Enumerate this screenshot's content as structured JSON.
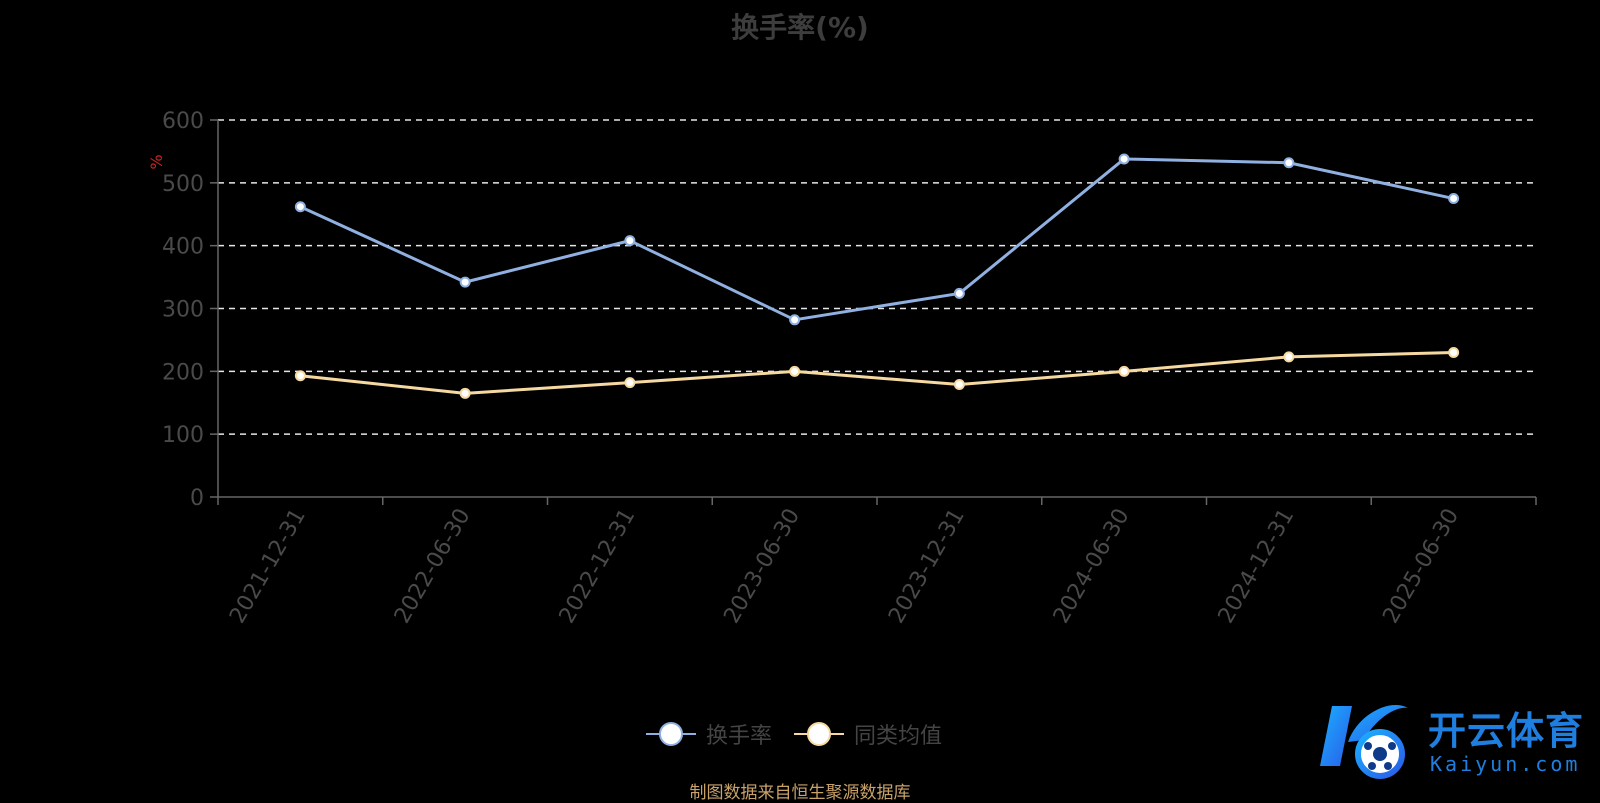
{
  "title": "换手率(%)",
  "source_note": "制图数据来自恒生聚源数据库",
  "watermark": {
    "brand_cn": "开云体育",
    "brand_en": "Kaiyun.com"
  },
  "colors": {
    "background": "#000000",
    "series_turnover": "#8fb0e0",
    "series_peer_avg": "#f6d9a0",
    "grid": "#e6e6e6",
    "axis": "#666666",
    "ylabel": "#cc2222",
    "brand": "#1f7fe0"
  },
  "legend": [
    {
      "label": "换手率",
      "color": "#8fb0e0"
    },
    {
      "label": "同类均值",
      "color": "#f6d9a0"
    }
  ],
  "chart_data": {
    "type": "line",
    "title": "换手率(%)",
    "ylabel": "%",
    "xlabel": "",
    "ylim": [
      0,
      600
    ],
    "yticks": [
      0,
      100,
      200,
      300,
      400,
      500,
      600
    ],
    "grid": true,
    "legend_position": "bottom",
    "categories": [
      "2021-12-31",
      "2022-06-30",
      "2022-12-31",
      "2023-06-30",
      "2023-12-31",
      "2024-06-30",
      "2024-12-31",
      "2025-06-30"
    ],
    "series": [
      {
        "name": "换手率",
        "values": [
          462,
          342,
          408,
          282,
          324,
          538,
          532,
          475
        ]
      },
      {
        "name": "同类均值",
        "values": [
          193,
          165,
          182,
          200,
          179,
          200,
          223,
          230
        ]
      }
    ]
  }
}
